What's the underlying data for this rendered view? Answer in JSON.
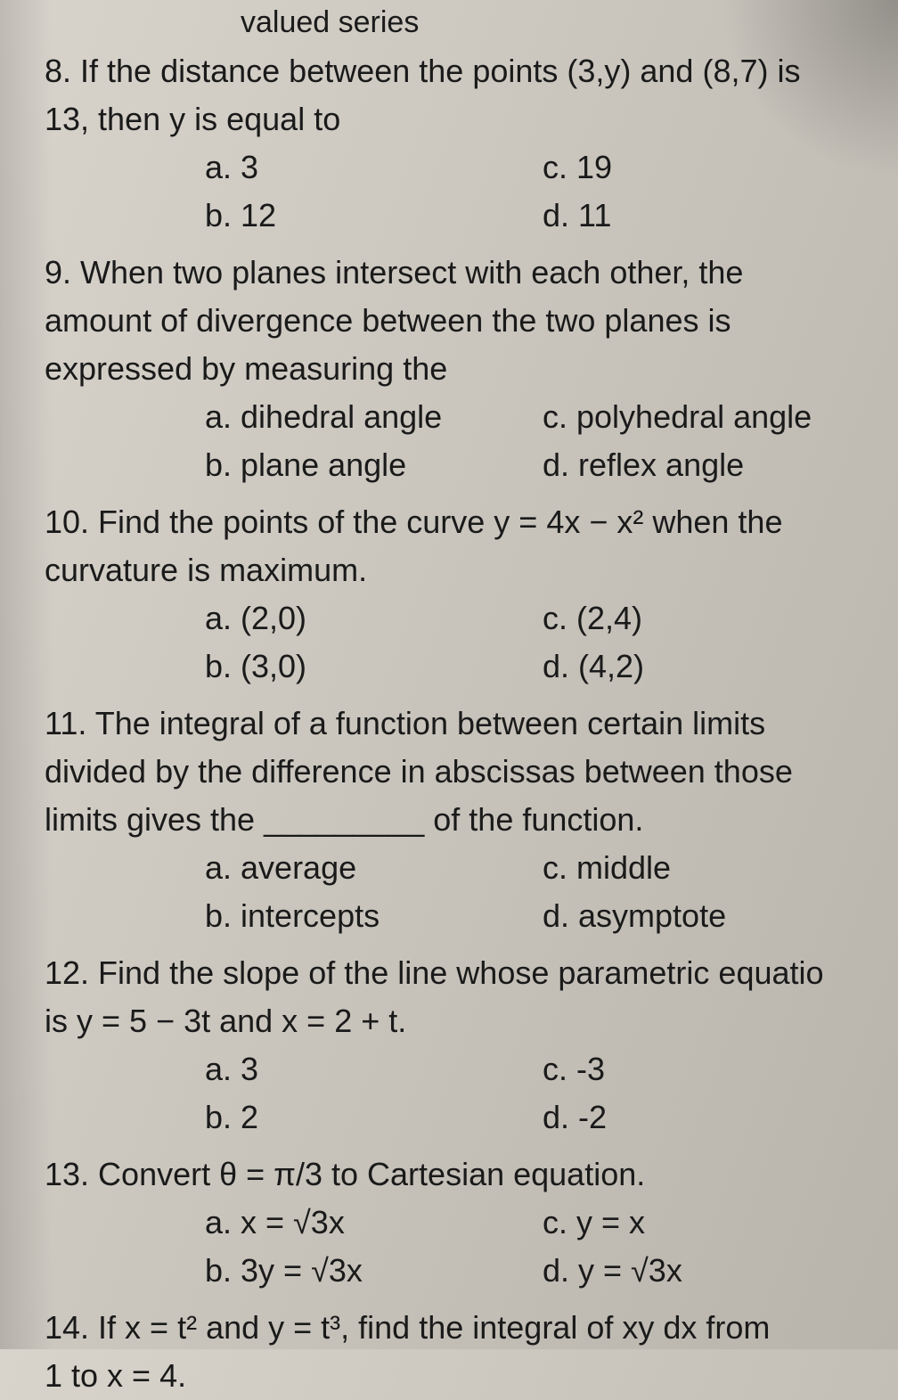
{
  "header_fragment": "valued series",
  "questions": [
    {
      "num": "8",
      "text_lines": [
        "8. If the distance between the points (3,y) and (8,7) is",
        "13, then y is equal to"
      ],
      "opts": {
        "a": "a. 3",
        "b": "b. 12",
        "c": "c. 19",
        "d": "d. 11"
      }
    },
    {
      "num": "9",
      "text_lines": [
        "9. When two planes intersect with each other, the",
        "amount of divergence between the two planes is",
        "expressed by measuring the"
      ],
      "opts": {
        "a": "a. dihedral angle",
        "b": "b. plane angle",
        "c": "c. polyhedral angle",
        "d": "d. reflex angle"
      }
    },
    {
      "num": "10",
      "text_lines": [
        "10. Find the points of the curve y = 4x − x² when the",
        "curvature is maximum."
      ],
      "opts": {
        "a": "a. (2,0)",
        "b": "b. (3,0)",
        "c": "c. (2,4)",
        "d": "d. (4,2)"
      }
    },
    {
      "num": "11",
      "text_lines": [
        "11. The integral of a function between certain limits",
        "divided by the difference in abscissas between those",
        "limits gives the _________ of the function."
      ],
      "opts": {
        "a": "a. average",
        "b": "b. intercepts",
        "c": "c. middle",
        "d": "d. asymptote"
      }
    },
    {
      "num": "12",
      "text_lines": [
        "12. Find the slope of the line whose parametric equatio",
        "is y = 5 − 3t and x = 2 + t."
      ],
      "opts": {
        "a": "a. 3",
        "b": "b. 2",
        "c": "c. -3",
        "d": "d. -2"
      }
    },
    {
      "num": "13",
      "text_lines": [
        "13. Convert θ = π/3 to Cartesian equation."
      ],
      "opts": {
        "a": "a. x = √3x",
        "b": "b. 3y = √3x",
        "c": "c. y = x",
        "d": "d. y = √3x"
      }
    },
    {
      "num": "14",
      "text_lines": [
        "14. If x = t² and y = t³, find the integral of xy dx from",
        "1 to x = 4."
      ],
      "opts": null
    }
  ]
}
